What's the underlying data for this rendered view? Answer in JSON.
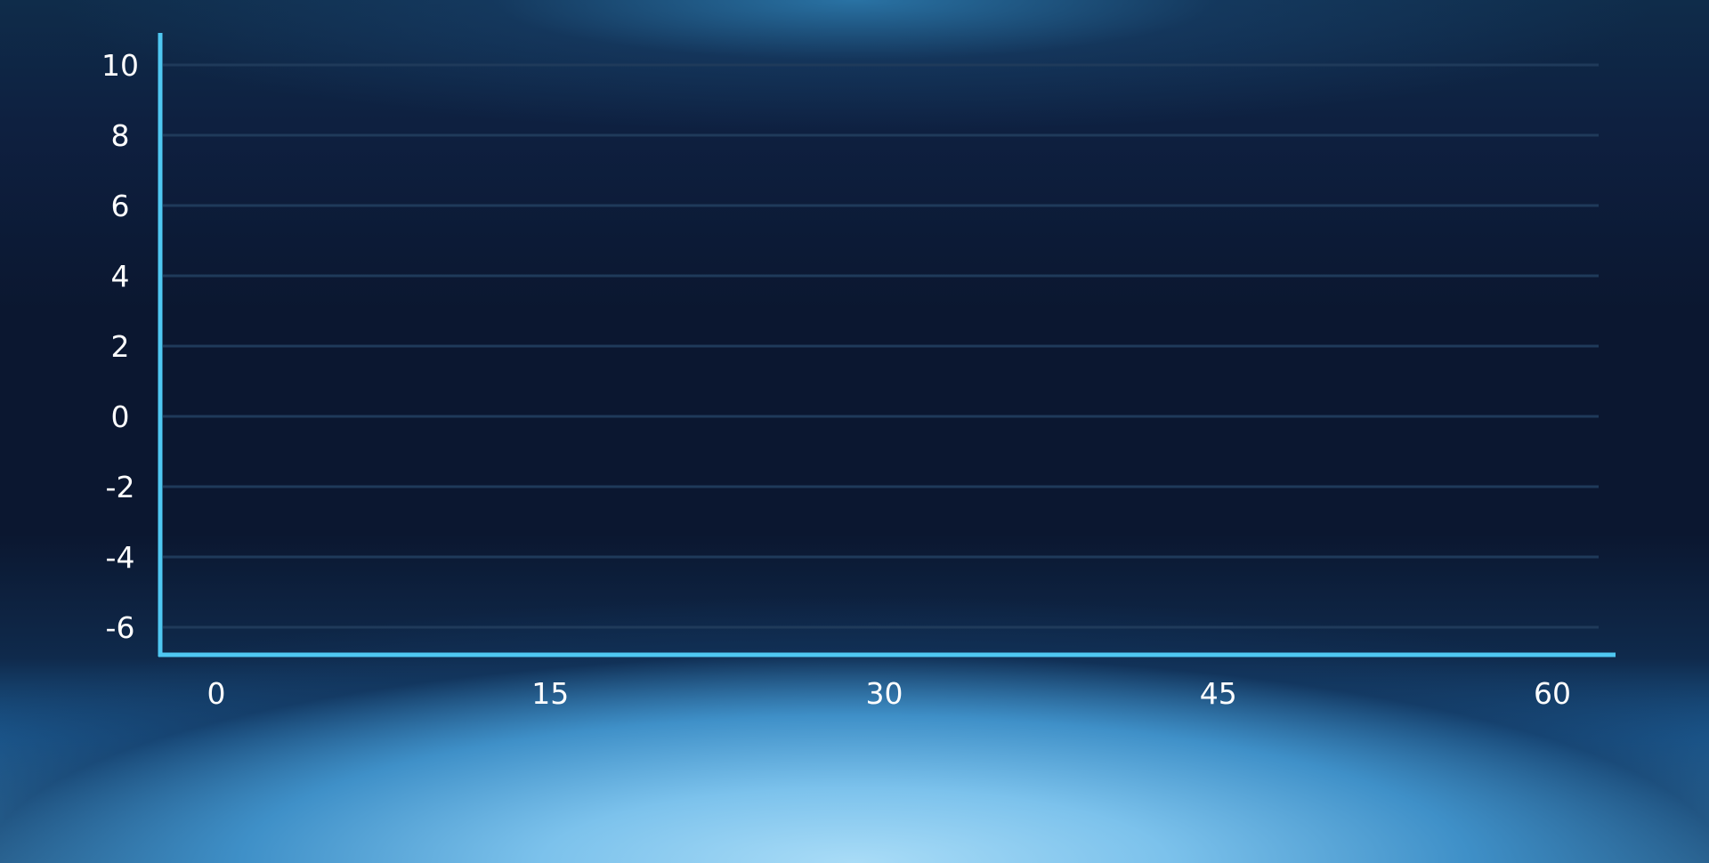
{
  "chart_data": {
    "type": "line",
    "title": "",
    "xlabel": "",
    "ylabel": "",
    "x_ticks": [
      0,
      15,
      30,
      45,
      60
    ],
    "y_ticks": [
      10,
      8,
      6,
      4,
      2,
      0,
      -2,
      -4,
      -6
    ],
    "xlim": [
      0,
      60
    ],
    "ylim": [
      -6,
      10
    ],
    "grid": true,
    "series": []
  },
  "colors": {
    "axis": "#4fc8f2",
    "grid": "#1f3a5a",
    "tick_text": "#ffffff"
  }
}
